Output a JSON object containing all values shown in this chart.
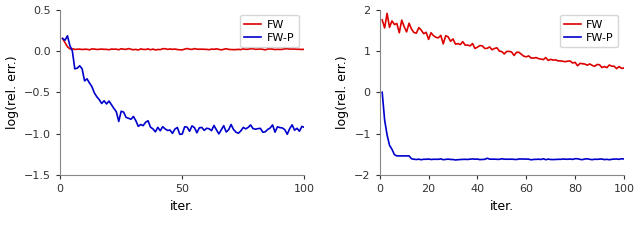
{
  "left_ylim": [
    -1.5,
    0.5
  ],
  "left_yticks": [
    -1.5,
    -1.0,
    -0.5,
    0.0,
    0.5
  ],
  "right_ylim": [
    -2.0,
    2.0
  ],
  "right_yticks": [
    -2,
    -1,
    0,
    1,
    2
  ],
  "xlabel": "iter.",
  "ylabel": "log(rel. err.)",
  "xlim": [
    0,
    100
  ],
  "left_xticks": [
    0,
    50,
    100
  ],
  "right_xticks": [
    0,
    20,
    40,
    60,
    80,
    100
  ],
  "fw_color": "#dd0000",
  "fwp_color": "#0000cc",
  "legend_labels": [
    "FW",
    "FW-P"
  ],
  "n_iter": 100,
  "background_color": "#ffffff",
  "linewidth": 1.2
}
